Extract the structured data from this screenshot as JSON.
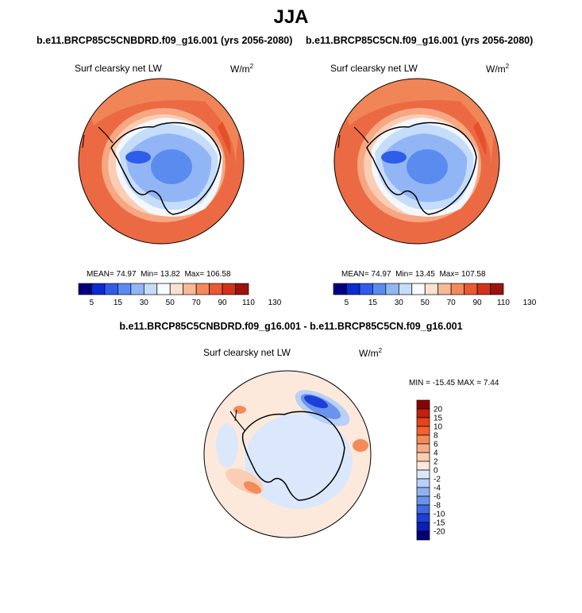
{
  "main_title": "JJA",
  "units_base": "W/m",
  "units_exp": "2",
  "chart_data": [
    {
      "type": "heatmap",
      "projection": "south polar stereographic",
      "case": "b.e11.BRCP85C5CNBDRD.f09_g16.001 (yrs 2056-2080)",
      "variable": "Surf clearsky net LW",
      "mean_label": "MEAN=",
      "mean": "74.97",
      "min_label": "Min=",
      "min": "13.82",
      "max_label": "Max=",
      "max": "106.58",
      "colorbar": {
        "orientation": "horizontal",
        "levels": [
          "5",
          "15",
          "30",
          "50",
          "70",
          "90",
          "110",
          "130"
        ],
        "colors": [
          "#00007f",
          "#0a2cd1",
          "#2f5ce8",
          "#5a8cf0",
          "#92b6f5",
          "#c5dcfb",
          "#f8fbff",
          "#fde1d0",
          "#f8b997",
          "#f38a5e",
          "#e95a32",
          "#d2321a",
          "#9c1309"
        ]
      }
    },
    {
      "type": "heatmap",
      "projection": "south polar stereographic",
      "case": "b.e11.BRCP85C5CN.f09_g16.001 (yrs 2056-2080)",
      "variable": "Surf clearsky net LW",
      "mean_label": "MEAN=",
      "mean": "74.97",
      "min_label": "Min=",
      "min": "13.45",
      "max_label": "Max=",
      "max": "107.58",
      "colorbar": {
        "orientation": "horizontal",
        "levels": [
          "5",
          "15",
          "30",
          "50",
          "70",
          "90",
          "110",
          "130"
        ],
        "colors": [
          "#00007f",
          "#0a2cd1",
          "#2f5ce8",
          "#5a8cf0",
          "#92b6f5",
          "#c5dcfb",
          "#f8fbff",
          "#fde1d0",
          "#f8b997",
          "#f38a5e",
          "#e95a32",
          "#d2321a",
          "#9c1309"
        ]
      }
    },
    {
      "type": "heatmap",
      "projection": "south polar stereographic",
      "case": "b.e11.BRCP85C5CNBDRD.f09_g16.001 - b.e11.BRCP85C5CN.f09_g16.001",
      "variable": "Surf clearsky net LW",
      "stats_text": "MIN = -15.45 MAX =   7.44",
      "colorbar": {
        "orientation": "vertical",
        "levels": [
          "20",
          "15",
          "10",
          "8",
          "6",
          "4",
          "2",
          "0",
          "-2",
          "-4",
          "-6",
          "-8",
          "-10",
          "-15",
          "-20"
        ],
        "colors": [
          "#8b0000",
          "#c4200b",
          "#e8431a",
          "#f2622d",
          "#f58a5a",
          "#f8ac85",
          "#fbcdb2",
          "#fde9dc",
          "#dbe8fb",
          "#b9d0f8",
          "#8fb3f2",
          "#6a93ec",
          "#3f6ae4",
          "#1c3fd9",
          "#0b1fb5",
          "#000078"
        ]
      }
    }
  ]
}
